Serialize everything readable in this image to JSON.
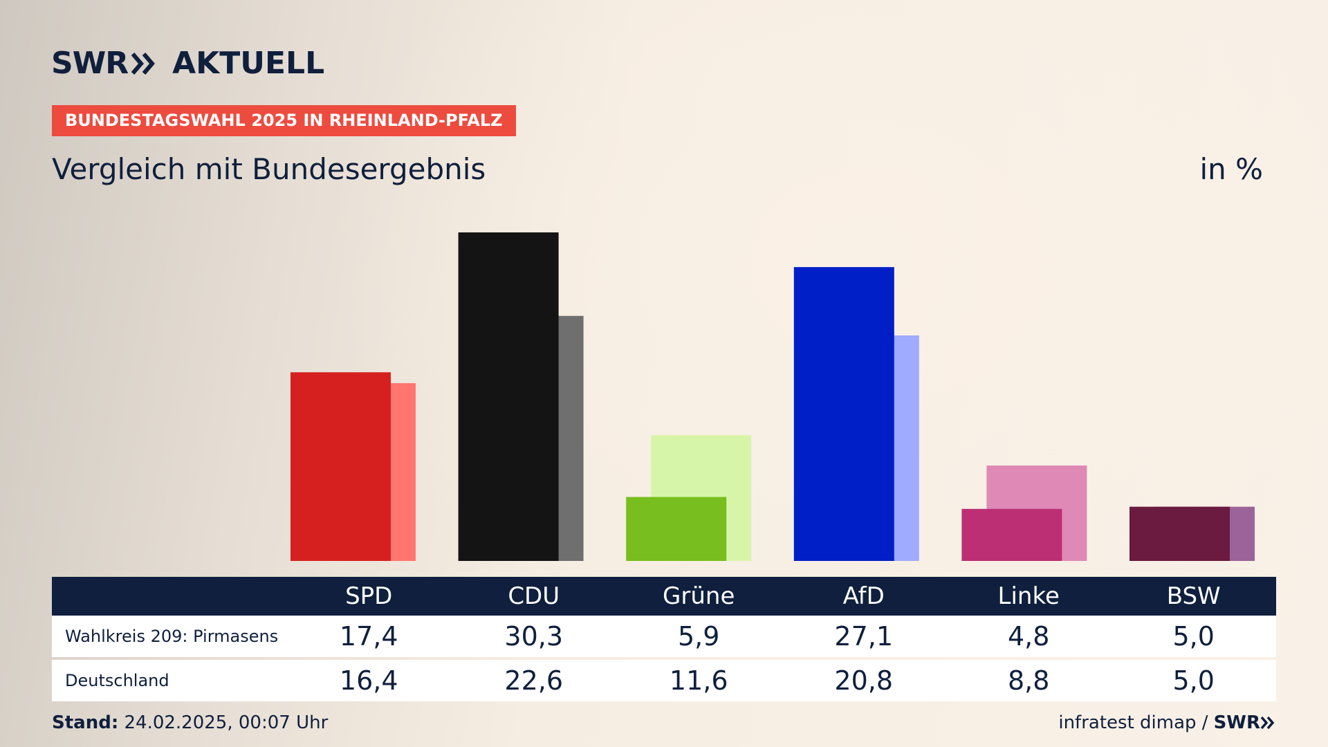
{
  "header": {
    "brand": "SWR",
    "name": "AKTUELL",
    "tag": "BUNDESTAGSWAHL 2025 IN RHEINLAND-PFALZ",
    "subtitle": "Vergleich mit Bundesergebnis",
    "unit": "in %"
  },
  "chart_data": {
    "type": "bar",
    "title": "Vergleich mit Bundesergebnis",
    "ylabel": "in %",
    "ylim": [
      0,
      30.3
    ],
    "categories": [
      "SPD",
      "CDU",
      "Grüne",
      "AfD",
      "Linke",
      "BSW"
    ],
    "series": [
      {
        "name": "Wahlkreis 209: Pirmasens",
        "values": [
          17.4,
          30.3,
          5.9,
          27.1,
          4.8,
          5.0
        ],
        "labels": [
          "17,4",
          "30,3",
          "5,9",
          "27,1",
          "4,8",
          "5,0"
        ]
      },
      {
        "name": "Deutschland",
        "values": [
          16.4,
          22.6,
          11.6,
          20.8,
          8.8,
          5.0
        ],
        "labels": [
          "16,4",
          "22,6",
          "11,6",
          "20,8",
          "8,8",
          "5,0"
        ]
      }
    ],
    "colors": {
      "primary": [
        "#d62020",
        "#141414",
        "#78be1e",
        "#001fc7",
        "#bc2f74",
        "#6b1a40"
      ],
      "secondary": [
        "#ff7670",
        "#6f6f6f",
        "#d7f5a8",
        "#9fabff",
        "#de89b6",
        "#9b6399"
      ]
    },
    "grid": false
  },
  "table": {
    "headers": [
      "SPD",
      "CDU",
      "Grüne",
      "AfD",
      "Linke",
      "BSW"
    ],
    "rows": [
      {
        "label": "Wahlkreis 209: Pirmasens",
        "values": [
          "17,4",
          "30,3",
          "5,9",
          "27,1",
          "4,8",
          "5,0"
        ]
      },
      {
        "label": "Deutschland",
        "values": [
          "16,4",
          "22,6",
          "11,6",
          "20,8",
          "8,8",
          "5,0"
        ]
      }
    ]
  },
  "footer": {
    "stand_label": "Stand:",
    "stand_value": "24.02.2025, 00:07 Uhr",
    "source": "infratest dimap /",
    "source_brand": "SWR"
  },
  "colors": {
    "navy": "#0f1f3d",
    "tag": "#ee4b3f"
  },
  "icons": {
    "brand_chevrons": "double-chevron-right-icon"
  }
}
